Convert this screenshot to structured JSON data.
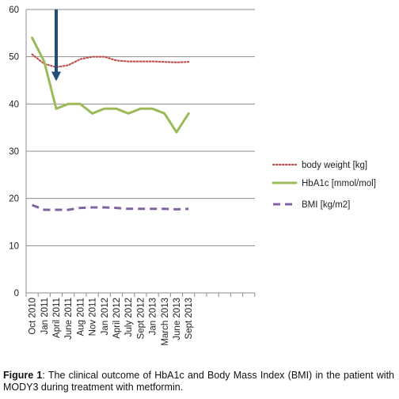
{
  "caption": {
    "label": "Figure 1",
    "text": ": The clinical outcome of HbA1c and Body Mass Index (BMI) in the patient with MODY3 during treatment with metformin."
  },
  "chart_data": {
    "type": "line",
    "categories": [
      "Oct 2010",
      "Jan 2011",
      "April 2011",
      "June 2011",
      "Aug 2011",
      "Nov 2011",
      "Jan 2012",
      "April 2012",
      "July 2012",
      "Sept 2012",
      "Jan 2013",
      "March 2013",
      "June 2013",
      "Sept 2013"
    ],
    "ylim": [
      0,
      60
    ],
    "yticks": [
      0,
      10,
      20,
      30,
      40,
      50,
      60
    ],
    "grid": true,
    "legend_position": "right",
    "series": [
      {
        "name": "body weight [kg]",
        "color": "#c0504d",
        "style": "dotted",
        "values": [
          50.5,
          48.5,
          47.8,
          48.2,
          49.5,
          50,
          50,
          49.2,
          49,
          49,
          49,
          48.9,
          48.8,
          48.9
        ]
      },
      {
        "name": "HbA1c [mmol/mol]",
        "color": "#9bbb59",
        "style": "solid",
        "values": [
          54,
          49,
          39,
          40,
          40,
          38,
          39,
          39,
          38,
          39,
          39,
          38,
          34,
          38
        ]
      },
      {
        "name": "BMI [kg/m2]",
        "color": "#8064a2",
        "style": "dashed",
        "values": [
          18.6,
          17.6,
          17.6,
          17.6,
          18,
          18.1,
          18.1,
          18,
          17.8,
          17.8,
          17.8,
          17.8,
          17.7,
          17.8
        ]
      }
    ],
    "annotation": {
      "type": "arrow",
      "color": "#1f4e79",
      "category": "April 2011",
      "from_value": 60,
      "to_value": 45
    }
  }
}
